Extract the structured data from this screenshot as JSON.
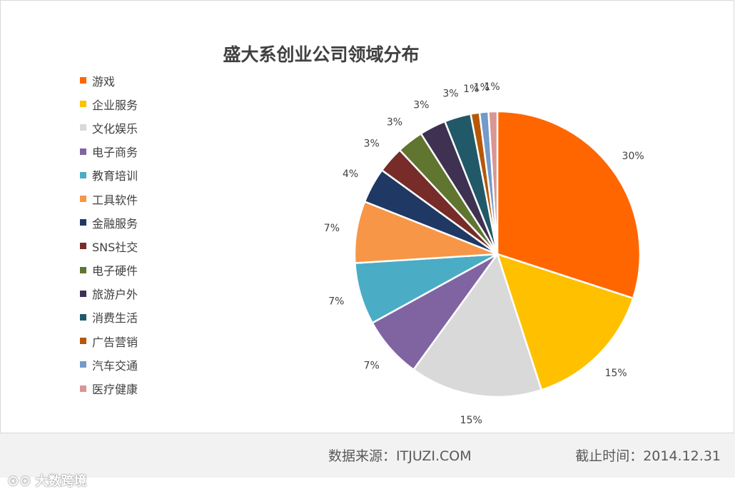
{
  "chart_data": {
    "type": "pie",
    "title": "盛大系创业公司领域分布",
    "categories": [
      "游戏",
      "企业服务",
      "文化娱乐",
      "电子商务",
      "教育培训",
      "工具软件",
      "金融服务",
      "SNS社交",
      "电子硬件",
      "旅游户外",
      "消费生活",
      "广告营销",
      "汽车交通",
      "医疗健康"
    ],
    "values": [
      30,
      15,
      15,
      7,
      7,
      7,
      4,
      3,
      3,
      3,
      3,
      1,
      1,
      1
    ],
    "data_labels": [
      "30%",
      "15%",
      "15%",
      "7%",
      "7%",
      "7%",
      "4%",
      "3%",
      "3%",
      "3%",
      "3%",
      "1%",
      "1%",
      "1%"
    ],
    "colors": [
      "#ff6600",
      "#ffc000",
      "#d9d9d9",
      "#8064a2",
      "#4bacc6",
      "#f79646",
      "#1f3864",
      "#772c2a",
      "#5f7530",
      "#3f3151",
      "#215968",
      "#b65708",
      "#729aca",
      "#d99694"
    ],
    "legend_position": "left",
    "grid": false
  },
  "footer": {
    "source": "数据来源：ITJUZI.COM",
    "date": "截止时间：2014.12.31"
  },
  "watermark": {
    "text": "大数跨境",
    "icon": "logo-icon"
  }
}
